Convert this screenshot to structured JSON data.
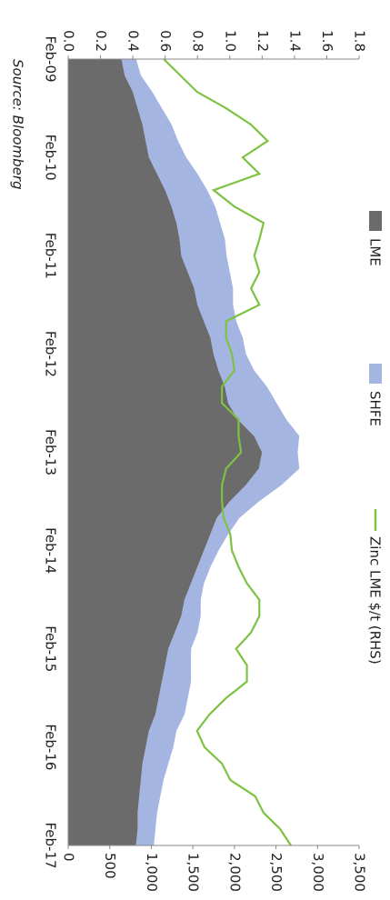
{
  "chart_data": {
    "type": "stacked-area-line",
    "source": "Source: Bloomberg",
    "categories": [
      "Feb-09",
      null,
      null,
      null,
      null,
      null,
      "Feb-10",
      null,
      null,
      null,
      null,
      null,
      "Feb-11",
      null,
      null,
      null,
      null,
      null,
      "Feb-12",
      null,
      null,
      null,
      null,
      null,
      "Feb-13",
      null,
      null,
      null,
      null,
      null,
      "Feb-14",
      null,
      null,
      null,
      null,
      null,
      "Feb-15",
      null,
      null,
      null,
      null,
      null,
      "Feb-16",
      null,
      null,
      null,
      null,
      null,
      "Feb-17"
    ],
    "series": [
      {
        "name": "LME",
        "color": "#6b6b6b",
        "kind": "area",
        "values": [
          0.33,
          0.35,
          0.4,
          0.43,
          0.46,
          0.48,
          0.5,
          0.55,
          0.6,
          0.64,
          0.67,
          0.69,
          0.7,
          0.74,
          0.78,
          0.8,
          0.84,
          0.88,
          0.9,
          0.93,
          0.97,
          0.99,
          1.05,
          1.15,
          1.2,
          1.18,
          1.1,
          1.0,
          0.92,
          0.88,
          0.84,
          0.8,
          0.76,
          0.72,
          0.7,
          0.66,
          0.62,
          0.6,
          0.58,
          0.56,
          0.54,
          0.5,
          0.48,
          0.46,
          0.45,
          0.44,
          0.43,
          0.43,
          0.42
        ]
      },
      {
        "name": "SHFE",
        "color": "#a4b5e2",
        "kind": "area",
        "values": [
          0.09,
          0.1,
          0.12,
          0.15,
          0.18,
          0.2,
          0.23,
          0.25,
          0.26,
          0.27,
          0.27,
          0.28,
          0.28,
          0.26,
          0.24,
          0.22,
          0.2,
          0.2,
          0.2,
          0.22,
          0.26,
          0.3,
          0.3,
          0.28,
          0.22,
          0.25,
          0.22,
          0.18,
          0.14,
          0.11,
          0.09,
          0.08,
          0.08,
          0.1,
          0.12,
          0.14,
          0.14,
          0.16,
          0.18,
          0.18,
          0.18,
          0.17,
          0.17,
          0.16,
          0.14,
          0.13,
          0.12,
          0.11,
          0.11
        ]
      },
      {
        "name": "Zinc LME $/t (RHS)",
        "color": "#7dc242",
        "kind": "line",
        "axis": "y2",
        "values": [
          1150,
          1350,
          1550,
          1900,
          2200,
          2400,
          2100,
          2300,
          1750,
          2000,
          2350,
          2300,
          2240,
          2300,
          2200,
          2300,
          1900,
          1900,
          1970,
          2000,
          1850,
          1850,
          2050,
          2050,
          2080,
          1900,
          1850,
          1850,
          1870,
          1950,
          1970,
          2050,
          2150,
          2300,
          2300,
          2200,
          2020,
          2150,
          2150,
          1900,
          1700,
          1550,
          1640,
          1850,
          1950,
          2250,
          2350,
          2550,
          2680
        ]
      }
    ],
    "ylim": [
      0,
      1.8
    ],
    "yticks": [
      {
        "value": 0,
        "label": "0.0"
      },
      0.2,
      0.4,
      0.6,
      0.8,
      {
        "value": 1,
        "label": "1.0"
      },
      1.2,
      1.4,
      1.6,
      1.8
    ],
    "y2lim": [
      0,
      3500
    ],
    "y2ticks": [
      0,
      500,
      {
        "value": 1000,
        "label": "1,000"
      },
      {
        "value": 1500,
        "label": "1,500"
      },
      {
        "value": 2000,
        "label": "2,000"
      },
      {
        "value": 2500,
        "label": "2,500"
      },
      {
        "value": 3000,
        "label": "3,000"
      },
      {
        "value": 3500,
        "label": "3,500"
      }
    ],
    "legend": "top"
  }
}
